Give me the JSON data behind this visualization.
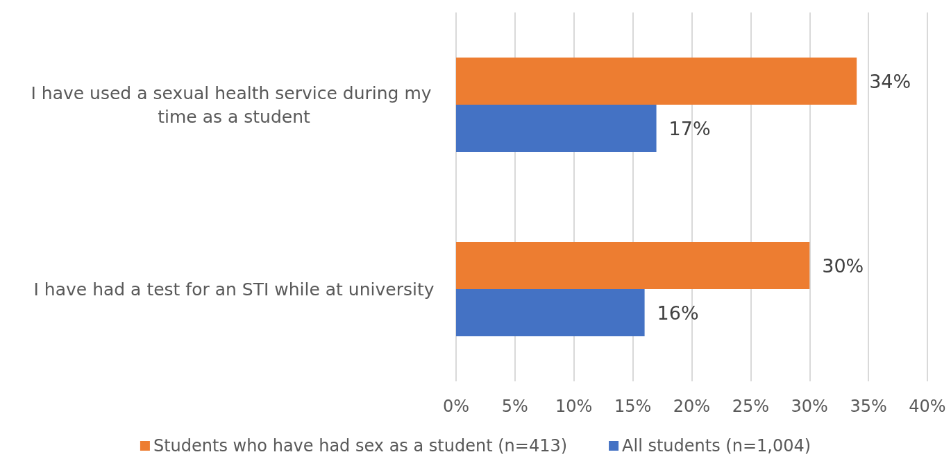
{
  "chart_data": {
    "type": "bar",
    "orientation": "horizontal",
    "categories": [
      "I have used a sexual health service during my time as a student",
      "I have had a test for an STI while at university"
    ],
    "series": [
      {
        "name": "Students who have had sex as a student (n=413)",
        "color": "#ed7d31",
        "values": [
          34,
          30
        ],
        "value_labels": [
          "34%",
          "30%"
        ]
      },
      {
        "name": "All students (n=1,004)",
        "color": "#4472c4",
        "values": [
          17,
          16
        ],
        "value_labels": [
          "17%",
          "16%"
        ]
      }
    ],
    "xlim": [
      0,
      40
    ],
    "xticks": [
      {
        "value": 0,
        "label": "0%"
      },
      {
        "value": 5,
        "label": "5%"
      },
      {
        "value": 10,
        "label": "10%"
      },
      {
        "value": 15,
        "label": "15%"
      },
      {
        "value": 20,
        "label": "20%"
      },
      {
        "value": 25,
        "label": "25%"
      },
      {
        "value": 30,
        "label": "30%"
      },
      {
        "value": 35,
        "label": "35%"
      },
      {
        "value": 40,
        "label": "40%"
      }
    ],
    "grid": "x",
    "legend": "bottom"
  }
}
